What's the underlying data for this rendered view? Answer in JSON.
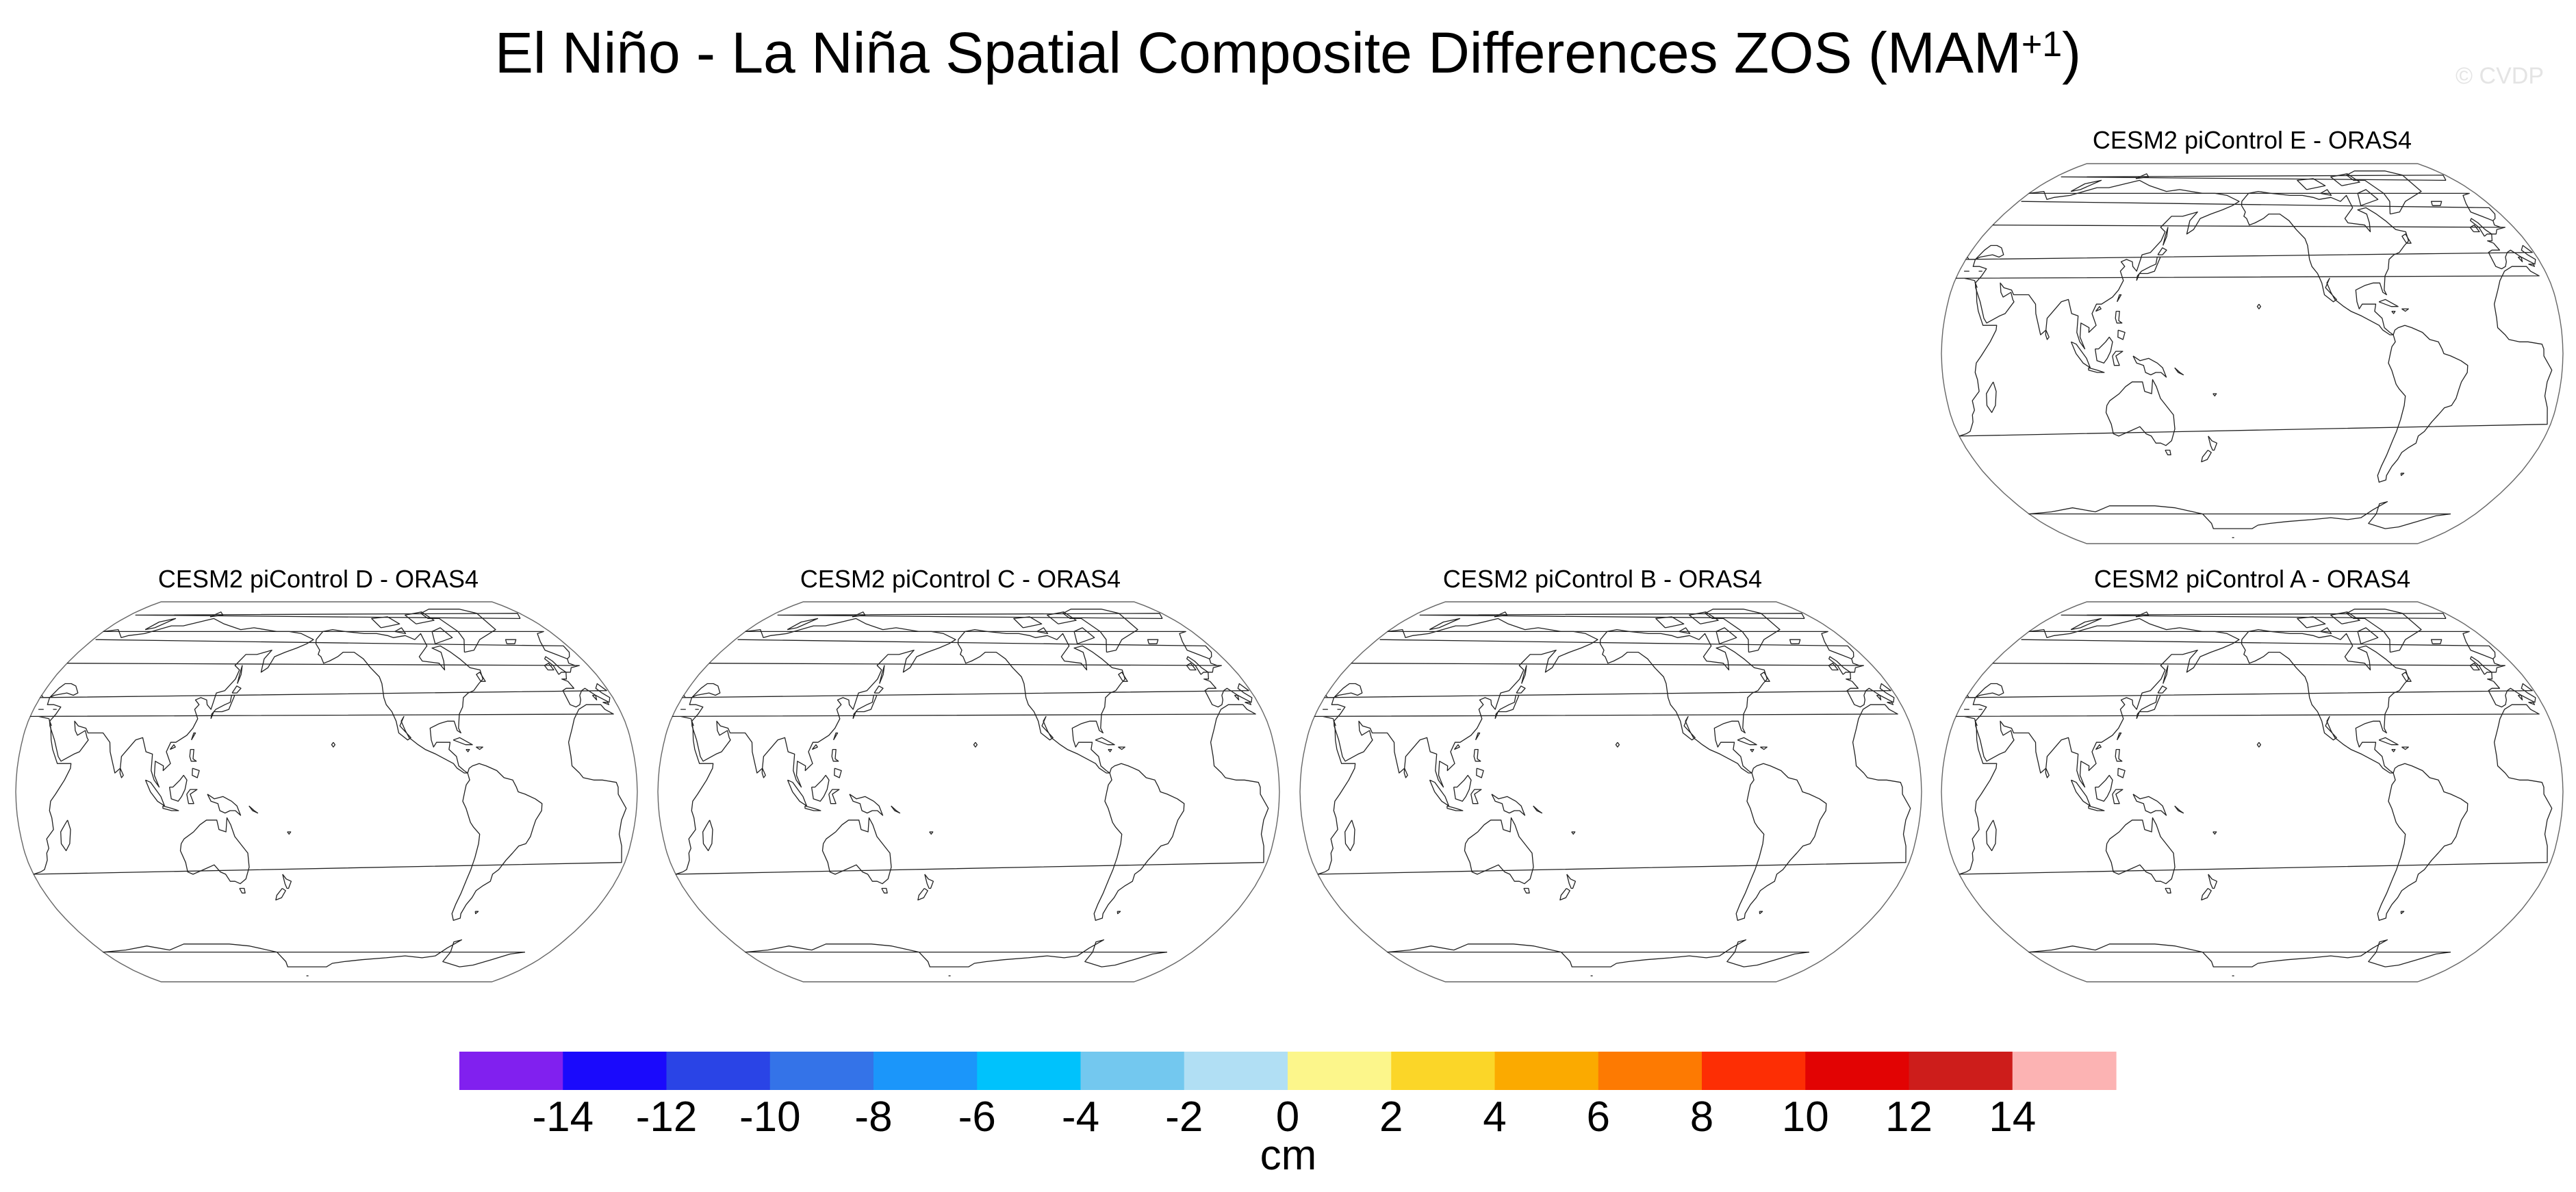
{
  "figure": {
    "title": "El Niño - La Niña Spatial Composite Differences ZOS (MAM",
    "title_superscript": "+1",
    "title_suffix": ")",
    "watermark": "© CVDP"
  },
  "panels": [
    {
      "id": "E",
      "title": "CESM2 piControl E - ORAS4",
      "field": "blank"
    },
    {
      "id": "D",
      "title": "CESM2 piControl D - ORAS4",
      "field": "blank"
    },
    {
      "id": "C",
      "title": "CESM2 piControl C - ORAS4",
      "field": "blank"
    },
    {
      "id": "B",
      "title": "CESM2 piControl B - ORAS4",
      "field": "blank"
    },
    {
      "id": "A",
      "title": "CESM2 piControl A - ORAS4",
      "field": "blank"
    }
  ],
  "map": {
    "projection": "robinson",
    "central_longitude": 200,
    "coastline_color": "#222222",
    "fill": "none"
  },
  "colorbar": {
    "units": "cm",
    "tick_labels": [
      "-14",
      "-12",
      "-10",
      "-8",
      "-6",
      "-4",
      "-2",
      "0",
      "2",
      "4",
      "6",
      "8",
      "10",
      "12",
      "14"
    ],
    "colors": [
      "#8120ef",
      "#1a0afc",
      "#2a44e6",
      "#3473e8",
      "#1b96fa",
      "#00c2fc",
      "#73c8ef",
      "#b1dff4",
      "#fcf68b",
      "#fbd628",
      "#fbaa00",
      "#fd7a02",
      "#fd2e04",
      "#e20303",
      "#cd1d1b",
      "#fcb3b3"
    ]
  }
}
